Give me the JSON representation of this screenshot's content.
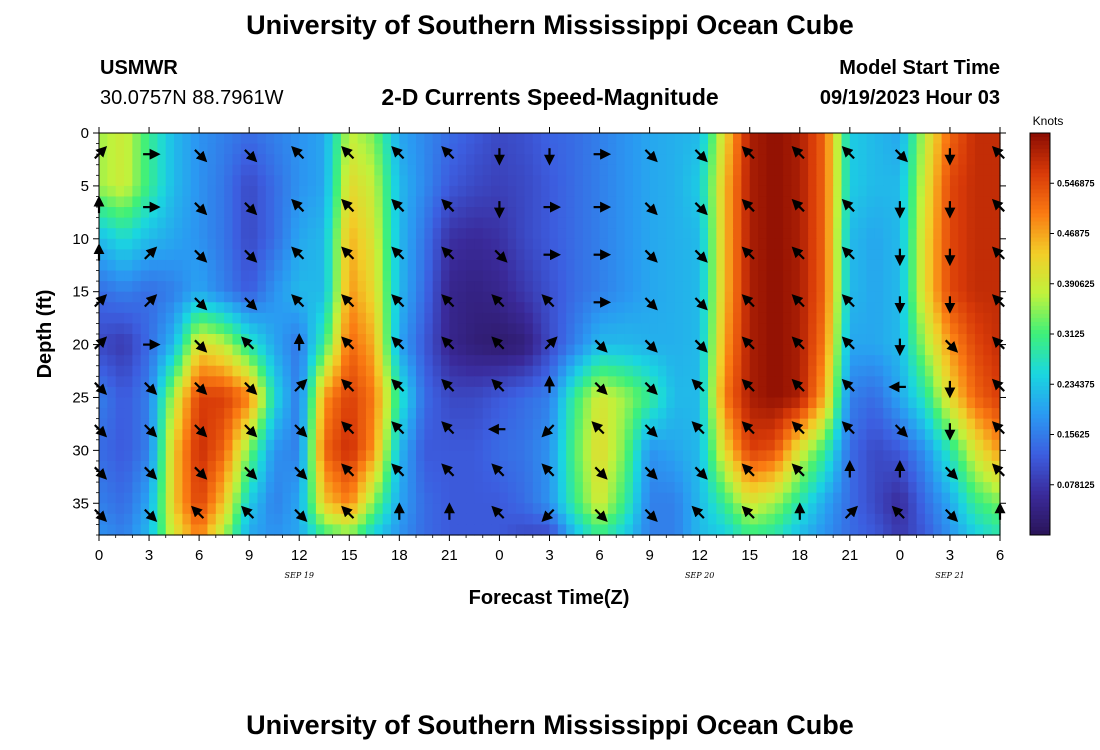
{
  "header": {
    "title": "University of Southern Mississippi Ocean Cube",
    "station": "USMWR",
    "coords": "30.0757N  88.7961W",
    "subtitle": "2-D Currents Speed-Magnitude",
    "model_label": "Model Start Time",
    "model_time": "09/19/2023 Hour 03"
  },
  "footer": {
    "title": "University of Southern Mississippi Ocean Cube"
  },
  "colorbar": {
    "unit": "Knots",
    "ticks": [
      "0.546875",
      "0.46875",
      "0.390625",
      "0.3125",
      "0.234375",
      "0.15625",
      "0.078125"
    ],
    "tick_values": [
      0.546875,
      0.46875,
      0.390625,
      0.3125,
      0.234375,
      0.15625,
      0.078125
    ],
    "range": [
      0,
      0.625
    ],
    "colors": [
      "#2a1458",
      "#3a2a9a",
      "#3c5ee0",
      "#2a9af2",
      "#1ad6e0",
      "#3ef07a",
      "#c0f23c",
      "#f2ce28",
      "#fa7a12",
      "#d83a08",
      "#8a0c02"
    ]
  },
  "chart_data": {
    "type": "heatmap",
    "title": "2-D Currents Speed-Magnitude",
    "xlabel": "Forecast Time(Z)",
    "ylabel": "Depth (ft)",
    "x_ticks": [
      "0",
      "3",
      "6",
      "9",
      "12",
      "15",
      "18",
      "21",
      "0",
      "3",
      "6",
      "9",
      "12",
      "15",
      "18",
      "21",
      "0",
      "3",
      "6"
    ],
    "x_hours": [
      0,
      3,
      6,
      9,
      12,
      15,
      18,
      21,
      24,
      27,
      30,
      33,
      36,
      39,
      42,
      45,
      48,
      51,
      54
    ],
    "y_ticks": [
      "0",
      "5",
      "10",
      "15",
      "20",
      "25",
      "30",
      "35"
    ],
    "y_values": [
      0,
      5,
      10,
      15,
      20,
      25,
      30,
      35
    ],
    "ylim": [
      0,
      38
    ],
    "xlim": [
      0,
      54
    ],
    "date_labels": [
      {
        "text": "SEP 19",
        "hour": 12
      },
      {
        "text": "SEP 20",
        "hour": 36
      },
      {
        "text": "SEP 21",
        "hour": 51
      }
    ],
    "z_unit": "Knots",
    "z_range": [
      0,
      0.625
    ],
    "speed_hours": [
      0,
      1.5,
      3,
      4.5,
      6,
      7.5,
      9,
      10.5,
      12,
      13.5,
      15,
      16.5,
      18,
      19.5,
      21,
      22.5,
      24,
      25.5,
      27,
      28.5,
      30,
      31.5,
      33,
      34.5,
      36,
      37.5,
      39,
      40.5,
      42,
      43.5,
      45,
      46.5,
      48,
      49.5,
      51,
      52.5,
      54
    ],
    "speed_depths": [
      0,
      5,
      10,
      15,
      20,
      25,
      30,
      35,
      38
    ],
    "speed": [
      [
        0.36,
        0.39,
        0.3,
        0.22,
        0.18,
        0.16,
        0.14,
        0.16,
        0.18,
        0.2,
        0.38,
        0.34,
        0.2,
        0.17,
        0.14,
        0.12,
        0.1,
        0.11,
        0.13,
        0.14,
        0.16,
        0.18,
        0.2,
        0.21,
        0.22,
        0.42,
        0.6,
        0.62,
        0.6,
        0.52,
        0.24,
        0.22,
        0.2,
        0.38,
        0.52,
        0.58,
        0.58
      ],
      [
        0.36,
        0.39,
        0.3,
        0.22,
        0.18,
        0.15,
        0.1,
        0.14,
        0.18,
        0.2,
        0.42,
        0.38,
        0.22,
        0.17,
        0.12,
        0.1,
        0.09,
        0.1,
        0.12,
        0.14,
        0.16,
        0.18,
        0.2,
        0.21,
        0.24,
        0.45,
        0.6,
        0.62,
        0.6,
        0.52,
        0.24,
        0.22,
        0.22,
        0.4,
        0.55,
        0.58,
        0.58
      ],
      [
        0.22,
        0.26,
        0.22,
        0.2,
        0.18,
        0.15,
        0.1,
        0.14,
        0.2,
        0.22,
        0.46,
        0.4,
        0.22,
        0.15,
        0.07,
        0.06,
        0.07,
        0.1,
        0.12,
        0.14,
        0.16,
        0.18,
        0.2,
        0.21,
        0.22,
        0.45,
        0.6,
        0.62,
        0.6,
        0.52,
        0.22,
        0.2,
        0.22,
        0.42,
        0.55,
        0.58,
        0.58
      ],
      [
        0.14,
        0.16,
        0.14,
        0.16,
        0.2,
        0.16,
        0.12,
        0.18,
        0.22,
        0.22,
        0.48,
        0.42,
        0.22,
        0.14,
        0.05,
        0.04,
        0.05,
        0.08,
        0.11,
        0.14,
        0.16,
        0.18,
        0.2,
        0.21,
        0.22,
        0.45,
        0.6,
        0.62,
        0.6,
        0.52,
        0.22,
        0.2,
        0.22,
        0.42,
        0.55,
        0.58,
        0.58
      ],
      [
        0.1,
        0.08,
        0.14,
        0.22,
        0.42,
        0.38,
        0.28,
        0.2,
        0.15,
        0.3,
        0.52,
        0.46,
        0.2,
        0.12,
        0.05,
        0.03,
        0.02,
        0.03,
        0.1,
        0.16,
        0.22,
        0.22,
        0.21,
        0.21,
        0.22,
        0.47,
        0.6,
        0.62,
        0.6,
        0.5,
        0.2,
        0.2,
        0.22,
        0.36,
        0.48,
        0.55,
        0.58
      ],
      [
        0.16,
        0.12,
        0.16,
        0.38,
        0.56,
        0.56,
        0.5,
        0.26,
        0.15,
        0.48,
        0.56,
        0.5,
        0.28,
        0.14,
        0.1,
        0.1,
        0.12,
        0.14,
        0.16,
        0.3,
        0.4,
        0.36,
        0.3,
        0.22,
        0.22,
        0.5,
        0.6,
        0.62,
        0.6,
        0.46,
        0.16,
        0.14,
        0.2,
        0.28,
        0.42,
        0.52,
        0.56
      ],
      [
        0.14,
        0.12,
        0.16,
        0.44,
        0.58,
        0.52,
        0.34,
        0.18,
        0.16,
        0.52,
        0.58,
        0.48,
        0.22,
        0.12,
        0.12,
        0.12,
        0.14,
        0.15,
        0.18,
        0.32,
        0.42,
        0.34,
        0.18,
        0.2,
        0.22,
        0.42,
        0.56,
        0.54,
        0.4,
        0.3,
        0.14,
        0.1,
        0.12,
        0.18,
        0.28,
        0.4,
        0.48
      ],
      [
        0.16,
        0.14,
        0.2,
        0.44,
        0.56,
        0.44,
        0.24,
        0.16,
        0.2,
        0.44,
        0.5,
        0.34,
        0.2,
        0.14,
        0.12,
        0.12,
        0.12,
        0.14,
        0.18,
        0.3,
        0.4,
        0.3,
        0.16,
        0.16,
        0.22,
        0.3,
        0.4,
        0.36,
        0.28,
        0.2,
        0.14,
        0.1,
        0.06,
        0.14,
        0.2,
        0.3,
        0.34
      ],
      [
        0.18,
        0.16,
        0.22,
        0.4,
        0.5,
        0.36,
        0.2,
        0.18,
        0.2,
        0.3,
        0.34,
        0.24,
        0.18,
        0.14,
        0.12,
        0.12,
        0.12,
        0.1,
        0.1,
        0.22,
        0.3,
        0.24,
        0.16,
        0.16,
        0.22,
        0.24,
        0.3,
        0.28,
        0.22,
        0.18,
        0.14,
        0.12,
        0.08,
        0.12,
        0.18,
        0.24,
        0.28
      ]
    ],
    "vectors_hours": [
      0,
      3,
      6,
      9,
      12,
      15,
      18,
      21,
      24,
      27,
      30,
      33,
      36,
      39,
      42,
      45,
      48,
      51,
      54
    ],
    "vectors_depths": [
      2,
      7,
      11.5,
      16,
      20,
      24,
      28,
      32,
      36
    ],
    "vectors_dir_deg": [
      [
        45,
        0,
        315,
        315,
        135,
        135,
        135,
        135,
        270,
        270,
        0,
        315,
        315,
        135,
        135,
        135,
        315,
        270,
        135
      ],
      [
        90,
        0,
        315,
        315,
        135,
        135,
        135,
        135,
        270,
        0,
        0,
        315,
        315,
        135,
        135,
        135,
        270,
        270,
        135
      ],
      [
        90,
        45,
        315,
        315,
        135,
        135,
        135,
        135,
        315,
        0,
        0,
        315,
        315,
        135,
        135,
        135,
        270,
        270,
        135
      ],
      [
        45,
        45,
        315,
        315,
        135,
        135,
        135,
        135,
        135,
        135,
        0,
        315,
        315,
        135,
        135,
        135,
        270,
        270,
        135
      ],
      [
        45,
        0,
        315,
        135,
        90,
        135,
        135,
        135,
        135,
        45,
        315,
        315,
        315,
        135,
        135,
        135,
        270,
        315,
        135
      ],
      [
        315,
        315,
        315,
        315,
        45,
        135,
        135,
        135,
        135,
        90,
        315,
        315,
        135,
        135,
        135,
        135,
        180,
        270,
        135
      ],
      [
        315,
        315,
        315,
        315,
        315,
        135,
        135,
        135,
        180,
        225,
        135,
        315,
        135,
        135,
        135,
        135,
        315,
        270,
        135
      ],
      [
        315,
        315,
        315,
        315,
        315,
        135,
        135,
        135,
        135,
        135,
        315,
        315,
        315,
        135,
        135,
        90,
        90,
        315,
        135
      ],
      [
        315,
        315,
        135,
        135,
        315,
        135,
        90,
        90,
        135,
        225,
        315,
        315,
        135,
        135,
        90,
        45,
        135,
        315,
        90
      ]
    ]
  }
}
